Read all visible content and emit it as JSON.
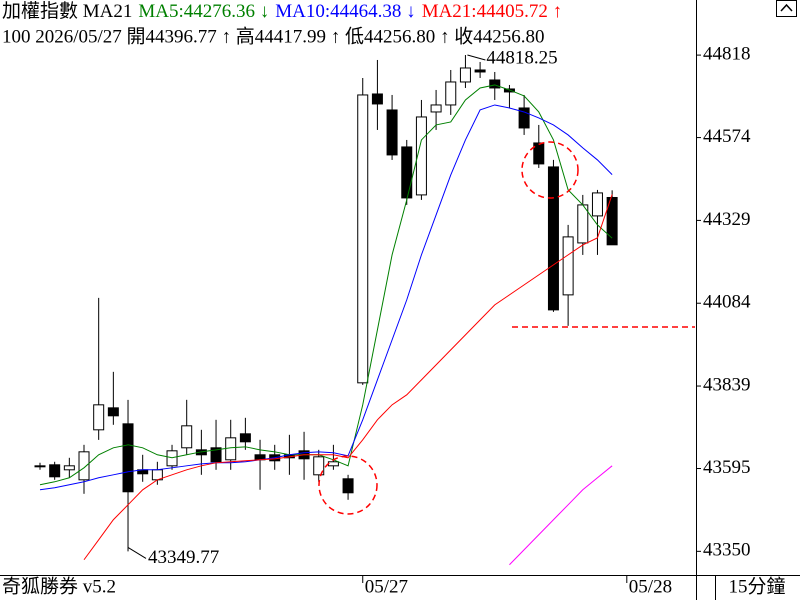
{
  "header": {
    "line1": [
      {
        "text": "加權指數 MA21",
        "color": "#000000"
      },
      {
        "text": "MA5:44276.36 ↓",
        "color": "#008000"
      },
      {
        "text": "MA10:44464.38 ↓",
        "color": "#0000ff"
      },
      {
        "text": "MA21:44405.72 ↑",
        "color": "#ff0000"
      }
    ],
    "line2": "100 2026/05/27 開44396.77 ↑ 高44417.99 ↑ 低44256.80 ↑ 收44256.80"
  },
  "footer": {
    "brand": "奇狐勝券 v5.2",
    "period": "15分鐘"
  },
  "chart_data": {
    "type": "candlestick",
    "categories": [
      null,
      null,
      null,
      null,
      null,
      null,
      null,
      null,
      null,
      null,
      null,
      null,
      null,
      null,
      null,
      null,
      null,
      null,
      null,
      null,
      null,
      null,
      "05/27",
      null,
      null,
      null,
      null,
      null,
      null,
      null,
      null,
      null,
      null,
      null,
      null,
      null,
      null,
      null,
      null,
      null,
      "05/28"
    ],
    "open": [
      43600.1,
      43606.0,
      43591.2,
      43561.6,
      43709.5,
      43774.5,
      43727.2,
      43591.2,
      43561.6,
      43603.0,
      43656.3,
      43650.3,
      43656.3,
      43620.8,
      43697.7,
      43635.6,
      43635.6,
      43635.6,
      43647.4,
      43576.4,
      43603.0,
      43564.6,
      43848.5,
      44703.0,
      44655.7,
      44546.3,
      44404.4,
      44649.8,
      44670.5,
      44738.5,
      44774.0,
      44744.4,
      44717.8,
      44661.6,
      44558.1,
      44487.2,
      44108.7,
      44262.4,
      44342.3,
      44396.77,
      null
    ],
    "high": [
      43611.9,
      43614.9,
      43626.7,
      43665.1,
      44099.8,
      43881.0,
      43798.2,
      43635.6,
      43614.9,
      43665.1,
      43798.2,
      43709.5,
      43739.1,
      43739.1,
      43745.0,
      43679.9,
      43665.1,
      43694.7,
      43703.6,
      43650.3,
      43665.1,
      43576.4,
      44750.4,
      44803.6,
      44700.1,
      44567.0,
      44685.3,
      44714.9,
      44774.0,
      44818.25,
      44797.7,
      44768.1,
      44729.7,
      44700.1,
      44611.4,
      44507.9,
      44315.7,
      44404.4,
      44419.2,
      44417.99,
      null
    ],
    "low": [
      43591.2,
      43561.6,
      43567.6,
      43520.2,
      43679.9,
      43724.3,
      43349.77,
      43555.7,
      43546.9,
      43591.2,
      43635.6,
      43576.4,
      43591.2,
      43591.2,
      43650.3,
      43532.1,
      43591.2,
      43576.4,
      43561.6,
      43555.7,
      43591.2,
      43502.5,
      43842.6,
      44596.6,
      44507.9,
      44374.8,
      44389.6,
      44596.6,
      44641.0,
      44720.8,
      44750.4,
      44685.3,
      44661.6,
      44581.8,
      44484.2,
      44058.4,
      44017.0,
      44226.9,
      44226.9,
      44256.8,
      null
    ],
    "close": [
      43603.0,
      43570.5,
      43603.0,
      43644.4,
      43783.4,
      43750.9,
      43526.2,
      43579.4,
      43591.2,
      43647.4,
      43721.3,
      43635.6,
      43614.9,
      43685.8,
      43674.0,
      43620.8,
      43617.8,
      43626.7,
      43623.7,
      43629.6,
      43614.9,
      43523.2,
      44700.1,
      44673.5,
      44522.7,
      44395.5,
      44635.0,
      44670.5,
      44738.5,
      44779.9,
      44768.1,
      44720.8,
      44709.0,
      44602.5,
      44496.1,
      44064.3,
      44280.2,
      44374.8,
      44410.3,
      44256.8,
      null
    ],
    "up_color": "#ffffff",
    "down_color": "#000000",
    "series": [
      {
        "color": "#008000",
        "values": [
          43546.9,
          43555.7,
          43567.6,
          43597.1,
          43635.6,
          43656.3,
          43665.1,
          43656.3,
          43635.6,
          43626.7,
          43635.6,
          43644.4,
          43650.3,
          43656.3,
          43659.2,
          43650.3,
          43644.4,
          43635.6,
          43635.6,
          43635.6,
          43620.8,
          43603.0,
          43783.4,
          44005.2,
          44227.0,
          44389.6,
          44567.0,
          44611.4,
          44620.2,
          44685.3,
          44720.8,
          44729.7,
          44714.9,
          44697.1,
          44649.8,
          44567.0,
          44419.2,
          44374.8,
          44315.7,
          44276.36,
          null
        ]
      },
      {
        "color": "#0000ff",
        "values": [
          43532.1,
          43538.0,
          43546.9,
          43555.7,
          43567.6,
          43576.4,
          43585.3,
          43591.2,
          43591.2,
          43597.1,
          43603.0,
          43608.9,
          43611.9,
          43611.9,
          43614.9,
          43620.8,
          43626.7,
          43635.6,
          43641.5,
          43644.4,
          43641.5,
          43632.6,
          43739.1,
          43857.3,
          43975.6,
          44093.9,
          44227.0,
          44345.2,
          44463.5,
          44567.0,
          44655.7,
          44670.5,
          44661.6,
          44649.8,
          44632.1,
          44611.4,
          44581.8,
          44543.4,
          44507.9,
          44464.38,
          null
        ]
      },
      {
        "color": "#ff0000",
        "values": [
          null,
          null,
          null,
          43325.1,
          43384.2,
          43443.4,
          43487.7,
          43532.1,
          43561.6,
          43576.4,
          43591.2,
          43603.0,
          43611.9,
          43614.9,
          43617.8,
          43620.8,
          43623.7,
          43629.6,
          43635.6,
          43635.6,
          43635.6,
          43626.7,
          43679.9,
          43739.1,
          43783.4,
          43813.0,
          43857.3,
          43901.7,
          43946.0,
          43990.4,
          44034.8,
          44079.1,
          44108.7,
          44138.3,
          44167.8,
          44197.4,
          44227.0,
          44256.5,
          44277.3,
          44405.72,
          null
        ]
      },
      {
        "color": "#ff00ff",
        "values": [
          null,
          null,
          null,
          null,
          null,
          null,
          null,
          null,
          null,
          null,
          null,
          null,
          null,
          null,
          null,
          null,
          null,
          null,
          null,
          null,
          null,
          null,
          null,
          null,
          null,
          null,
          null,
          null,
          null,
          null,
          null,
          null,
          43310.3,
          43354.6,
          43399.0,
          43443.4,
          43487.7,
          43532.1,
          43567.6,
          43603.0,
          null
        ]
      }
    ],
    "ylim": [
      43280,
      44981
    ],
    "yticks": [
      44818,
      44574,
      44329,
      44084,
      43839,
      43595,
      43350
    ],
    "grid": false
  }
}
